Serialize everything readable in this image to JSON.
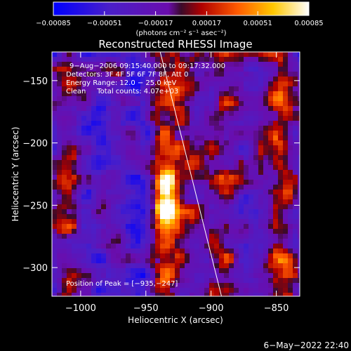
{
  "chart_data": {
    "type": "heatmap",
    "title": "Reconstructed RHESSI Image",
    "xlabel": "Heliocentric X (arcsec)",
    "ylabel": "Heliocentric Y (arcsec)",
    "xlim": [
      -1022,
      -832
    ],
    "ylim": [
      -323,
      -127
    ],
    "x_ticks": [
      {
        "value": -1000,
        "label": "−1000"
      },
      {
        "value": -950,
        "label": "−950"
      },
      {
        "value": -900,
        "label": "−900"
      },
      {
        "value": -850,
        "label": "−850"
      }
    ],
    "y_ticks": [
      {
        "value": -150,
        "label": "−150"
      },
      {
        "value": -200,
        "label": "−200"
      },
      {
        "value": -250,
        "label": "−250"
      },
      {
        "value": -300,
        "label": "−300"
      }
    ],
    "colorbar": {
      "range": [
        -0.00085,
        0.00085
      ],
      "unit_label": "(photons cm⁻² s⁻¹ asec⁻²)",
      "ticks": [
        {
          "value": -0.00085,
          "label": "−0.00085"
        },
        {
          "value": -0.00051,
          "label": "−0.00051"
        },
        {
          "value": -0.00017,
          "label": "−0.00017"
        },
        {
          "value": 0.00017,
          "label": "0.00017"
        },
        {
          "value": 0.00051,
          "label": "0.00051"
        },
        {
          "value": 0.00085,
          "label": "0.00085"
        }
      ],
      "colors": [
        "#0000ff",
        "#6a0dad",
        "#b00000",
        "#ff6a00",
        "#ffd400",
        "#ffffff"
      ]
    },
    "annotations": [
      "9−Aug−2006 09:15:40.000 to 09:17:32.000",
      "Detectors: 3F 4F 5F 6F 7F 8F, Att 0",
      "Energy Range: 12.0 − 25.0 keV",
      "Clean     Total counts: 4.07e+03",
      "Position of Peak = [−935,−247]"
    ],
    "peak": {
      "x": -935,
      "y": -247
    },
    "limb_line": [
      {
        "x": -939,
        "y": -127
      },
      {
        "x": -892,
        "y": -323
      }
    ]
  },
  "footer": {
    "date": "6−May−2022 22:40"
  },
  "colors": {
    "background": "#000000",
    "foreground": "#ffffff"
  }
}
